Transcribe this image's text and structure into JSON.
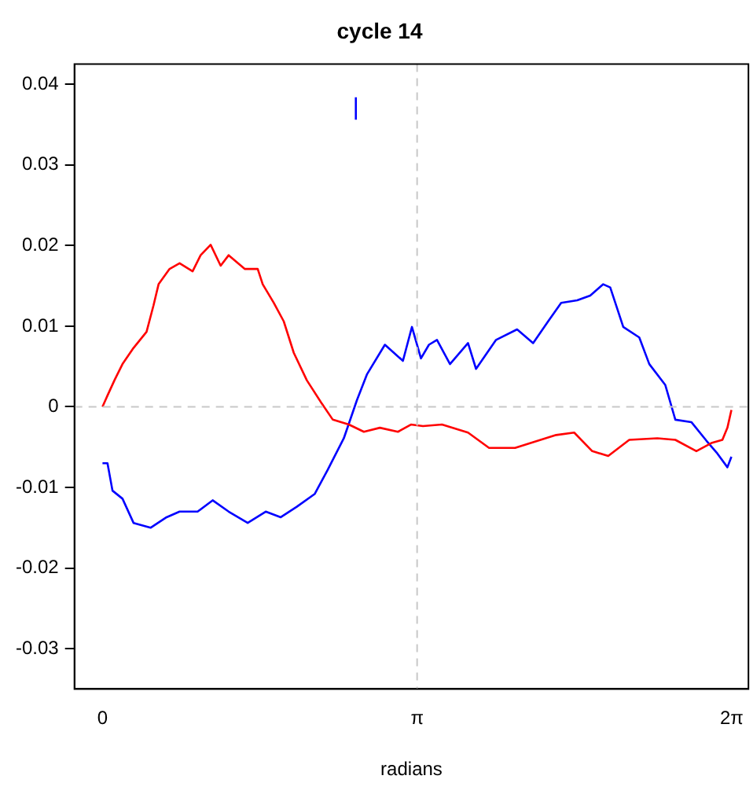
{
  "chart_data": {
    "type": "line",
    "title": "cycle 14",
    "xlabel": "radians",
    "xlim": [
      -0.28,
      6.45
    ],
    "ylim": [
      -0.035,
      0.0425
    ],
    "xticks": [
      {
        "value": 0,
        "label": "0"
      },
      {
        "value": 3.1416,
        "label": "π"
      },
      {
        "value": 6.2832,
        "label": "2π"
      }
    ],
    "yticks": [
      -0.03,
      -0.02,
      -0.01,
      0.0,
      0.01,
      0.02,
      0.03,
      0.04
    ],
    "grid": false,
    "legend": false,
    "marker": "none",
    "line_style": "solid",
    "ref_lines": [
      {
        "axis": "y",
        "value": 0,
        "color": "#c8c8c8",
        "line_style": "dashed"
      },
      {
        "axis": "x",
        "value": 3.1416,
        "color": "#c8c8c8",
        "line_style": "dashed"
      }
    ],
    "series": [
      {
        "color": "#ff0000",
        "x": [
          0,
          0.05,
          0.12,
          0.2,
          0.31,
          0.44,
          0.51,
          0.56,
          0.67,
          0.77,
          0.9,
          0.98,
          1.08,
          1.18,
          1.26,
          1.42,
          1.55,
          1.6,
          1.71,
          1.81,
          1.91,
          2.04,
          2.19,
          2.3,
          2.46,
          2.61,
          2.77,
          2.95,
          3.08,
          3.2,
          3.39,
          3.65,
          3.86,
          4.12,
          4.53,
          4.71,
          4.89,
          5.05,
          5.26,
          5.54,
          5.72,
          5.93,
          6.08,
          6.19,
          6.24,
          6.28
        ],
        "values": [
          0.0,
          0.0014,
          0.0033,
          0.0053,
          0.0073,
          0.0093,
          0.0126,
          0.0152,
          0.0171,
          0.0178,
          0.0168,
          0.0188,
          0.0201,
          0.0175,
          0.0188,
          0.0171,
          0.0171,
          0.0152,
          0.0129,
          0.0106,
          0.0067,
          0.0033,
          0.0004,
          -0.0016,
          -0.0022,
          -0.0031,
          -0.0026,
          -0.0031,
          -0.0022,
          -0.0024,
          -0.0022,
          -0.0032,
          -0.0051,
          -0.0051,
          -0.0035,
          -0.0032,
          -0.0055,
          -0.0061,
          -0.0041,
          -0.0039,
          -0.0041,
          -0.0055,
          -0.0045,
          -0.0041,
          -0.0026,
          -0.0004
        ]
      },
      {
        "color": "#0000ff",
        "x": [
          0,
          0.05,
          0.1,
          0.2,
          0.31,
          0.48,
          0.64,
          0.77,
          0.95,
          1.1,
          1.26,
          1.45,
          1.63,
          1.78,
          1.94,
          2.12,
          2.25,
          2.41,
          2.54,
          2.64,
          2.82,
          3.0,
          3.09,
          3.18,
          3.26,
          3.34,
          3.47,
          3.65,
          3.73,
          3.93,
          4.14,
          4.3,
          4.45,
          4.58,
          4.74,
          4.87,
          5.0,
          5.07,
          5.2,
          5.36,
          5.46,
          5.62,
          5.72,
          5.88,
          6.03,
          6.14,
          6.24,
          6.28
        ],
        "values": [
          -0.007,
          -0.007,
          -0.0104,
          -0.0114,
          -0.0144,
          -0.015,
          -0.0137,
          -0.013,
          -0.013,
          -0.0116,
          -0.013,
          -0.0144,
          -0.013,
          -0.0137,
          -0.0124,
          -0.0108,
          -0.0078,
          -0.0039,
          0.0008,
          0.004,
          0.0077,
          0.0057,
          0.0099,
          0.006,
          0.0077,
          0.0083,
          0.0053,
          0.0079,
          0.0047,
          0.0083,
          0.0096,
          0.0079,
          0.0106,
          0.0129,
          0.0132,
          0.0138,
          0.0152,
          0.0148,
          0.0099,
          0.0086,
          0.0053,
          0.0027,
          -0.0016,
          -0.0019,
          -0.0042,
          -0.0058,
          -0.0075,
          -0.0062
        ]
      },
      {
        "color": "#0000ff",
        "x": [
          2.53,
          2.53
        ],
        "values": [
          0.0356,
          0.0384
        ]
      }
    ]
  }
}
